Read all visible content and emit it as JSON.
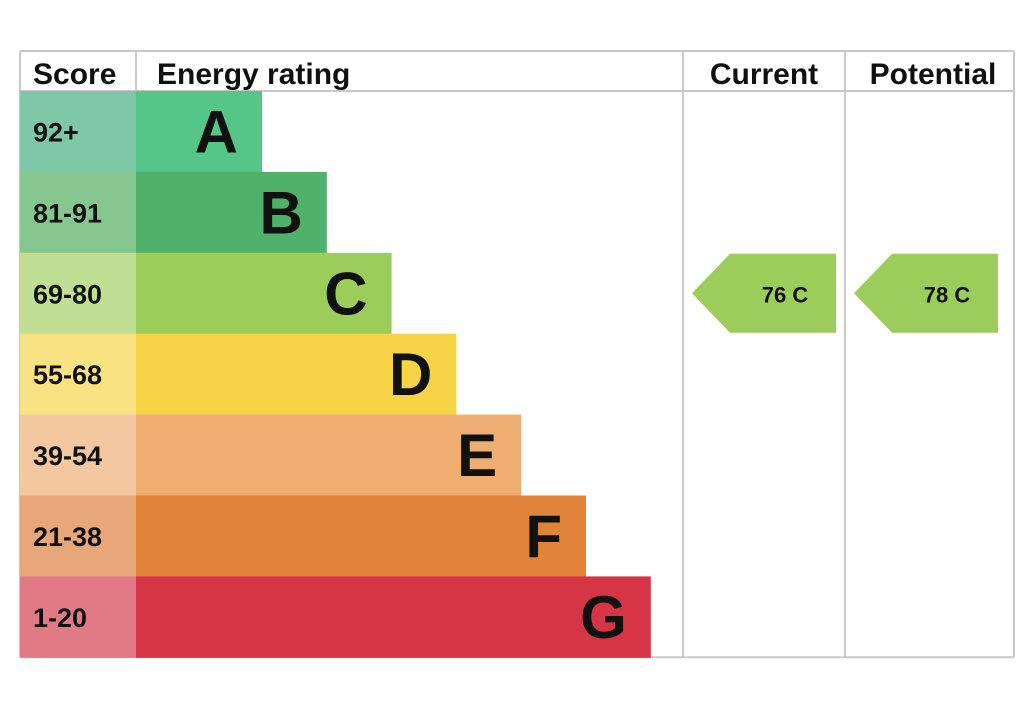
{
  "chart_data": {
    "type": "bar",
    "headers": {
      "score": "Score",
      "rating": "Energy rating",
      "current": "Current",
      "potential": "Potential"
    },
    "bands": [
      {
        "score": "92+",
        "letter": "A",
        "color": "#55c687",
        "score_bg": "#7ec8a8"
      },
      {
        "score": "81-91",
        "letter": "B",
        "color": "#50b26a",
        "score_bg": "#86c68f"
      },
      {
        "score": "69-80",
        "letter": "C",
        "color": "#9ccc5a",
        "score_bg": "#c1df92"
      },
      {
        "score": "55-68",
        "letter": "D",
        "color": "#f7d447",
        "score_bg": "#f9e282"
      },
      {
        "score": "39-54",
        "letter": "E",
        "color": "#eeae72",
        "score_bg": "#f3c8a1"
      },
      {
        "score": "21-38",
        "letter": "F",
        "color": "#e0843a",
        "score_bg": "#e8a778"
      },
      {
        "score": "1-20",
        "letter": "G",
        "color": "#d63545",
        "score_bg": "#e07b86"
      }
    ],
    "current": {
      "value": 76,
      "band": "C",
      "label": "76  C",
      "color": "#9ccc5a"
    },
    "potential": {
      "value": 78,
      "band": "C",
      "label": "78  C",
      "color": "#9ccc5a"
    }
  }
}
